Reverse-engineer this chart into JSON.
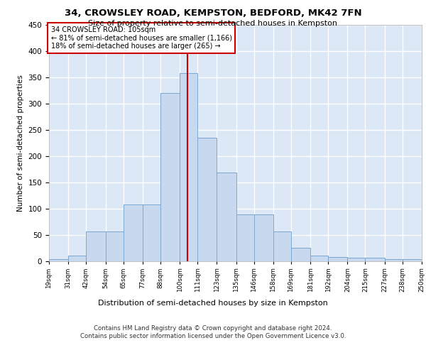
{
  "title1": "34, CROWSLEY ROAD, KEMPSTON, BEDFORD, MK42 7FN",
  "title2": "Size of property relative to semi-detached houses in Kempston",
  "xlabel": "Distribution of semi-detached houses by size in Kempston",
  "ylabel": "Number of semi-detached properties",
  "bin_edges": [
    19,
    31,
    42,
    54,
    65,
    77,
    88,
    100,
    111,
    123,
    135,
    146,
    158,
    169,
    181,
    192,
    204,
    215,
    227,
    238,
    250
  ],
  "bar_heights": [
    4,
    10,
    56,
    56,
    108,
    108,
    320,
    358,
    235,
    168,
    88,
    88,
    56,
    25,
    10,
    7,
    6,
    6,
    3,
    3
  ],
  "bar_color": "#c8d8ee",
  "bar_edge_color": "#7ba7d0",
  "vline_x": 105,
  "vline_color": "#cc0000",
  "annotation_title": "34 CROWSLEY ROAD: 105sqm",
  "annotation_line1": "← 81% of semi-detached houses are smaller (1,166)",
  "annotation_line2": "18% of semi-detached houses are larger (265) →",
  "annotation_box_color": "#ffffff",
  "annotation_box_edge": "#cc0000",
  "footer1": "Contains HM Land Registry data © Crown copyright and database right 2024.",
  "footer2": "Contains public sector information licensed under the Open Government Licence v3.0.",
  "ylim": [
    0,
    450
  ],
  "yticks": [
    0,
    50,
    100,
    150,
    200,
    250,
    300,
    350,
    400,
    450
  ],
  "bg_color": "#dce8f5",
  "grid_color": "#ffffff"
}
